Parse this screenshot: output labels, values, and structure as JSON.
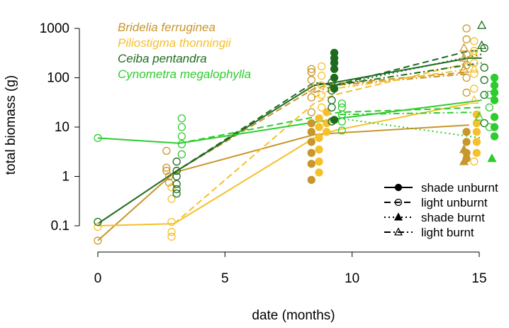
{
  "chart_data": {
    "type": "scatter",
    "title": "",
    "xlabel": "date (months)",
    "ylabel": "total biomass (g)",
    "xlim": [
      0,
      15.5
    ],
    "ylim": [
      0.06,
      1000
    ],
    "y_scale": "log",
    "x_ticks": [
      0,
      5,
      10,
      15
    ],
    "y_ticks": [
      0.1,
      1,
      10,
      100,
      1000
    ],
    "y_tick_labels": [
      "0.1",
      "1",
      "10",
      "100",
      "1000"
    ],
    "grid": false,
    "species_legend_placement": "top-left",
    "treatment_legend_placement": "bottom-right",
    "species": [
      {
        "name": "Bridelia ferruginea",
        "color": "#c8962a"
      },
      {
        "name": "Piliostigma thonningii",
        "color": "#f5c02a"
      },
      {
        "name": "Ceiba pentandra",
        "color": "#1e6b1e"
      },
      {
        "name": "Cynometra megalophylla",
        "color": "#2ecc2e"
      }
    ],
    "treatments": [
      {
        "name": "shade unburnt",
        "line": "solid",
        "marker": "filled-circle"
      },
      {
        "name": "light unburnt",
        "line": "long-dash",
        "marker": "open-circle"
      },
      {
        "name": "shade burnt",
        "line": "dotted",
        "marker": "filled-triangle"
      },
      {
        "name": "light burnt",
        "line": "dash-dot",
        "marker": "open-triangle"
      }
    ],
    "lines": [
      {
        "species": "Bridelia ferruginea",
        "treatment": "shade unburnt",
        "x": [
          0,
          3,
          8.5,
          9.3,
          14.6
        ],
        "y": [
          0.05,
          1.2,
          7,
          7.5,
          11
        ]
      },
      {
        "species": "Bridelia ferruginea",
        "treatment": "light unburnt",
        "x": [
          3,
          8.5,
          9.3,
          14.6
        ],
        "y": [
          1.2,
          60,
          75,
          130
        ]
      },
      {
        "species": "Bridelia ferruginea",
        "treatment": "light burnt",
        "x": [
          8.5,
          9.3,
          14.6
        ],
        "y": [
          50,
          70,
          120
        ]
      },
      {
        "species": "Piliostigma thonningii",
        "treatment": "shade unburnt",
        "x": [
          0,
          3,
          8.5,
          9.3,
          14.6
        ],
        "y": [
          0.1,
          0.11,
          6,
          8.5,
          30
        ]
      },
      {
        "species": "Piliostigma thonningii",
        "treatment": "light unburnt",
        "x": [
          3,
          8.5,
          9.3,
          14.6
        ],
        "y": [
          0.11,
          30,
          45,
          200
        ]
      },
      {
        "species": "Piliostigma thonningii",
        "treatment": "light burnt",
        "x": [
          8.5,
          9.3,
          14.6
        ],
        "y": [
          40,
          60,
          150
        ]
      },
      {
        "species": "Ceiba pentandra",
        "treatment": "shade unburnt",
        "x": [
          0,
          3,
          8.5,
          9.3,
          14.6,
          15.1
        ],
        "y": [
          0.11,
          1.2,
          70,
          80,
          250,
          250
        ]
      },
      {
        "species": "Ceiba pentandra",
        "treatment": "light unburnt",
        "x": [
          3,
          8.5,
          9.3,
          14.6,
          15.1
        ],
        "y": [
          1.2,
          80,
          70,
          350,
          350
        ]
      },
      {
        "species": "Ceiba pentandra",
        "treatment": "shade burnt",
        "x": [
          9.3,
          15.1
        ],
        "y": [
          70,
          300
        ]
      },
      {
        "species": "Ceiba pentandra",
        "treatment": "light burnt",
        "x": [
          9.3,
          15.1
        ],
        "y": [
          70,
          200
        ]
      },
      {
        "species": "Cynometra megalophylla",
        "treatment": "shade unburnt",
        "x": [
          0,
          3.2,
          9.5,
          15.1
        ],
        "y": [
          6,
          4.7,
          15,
          35
        ]
      },
      {
        "species": "Cynometra megalophylla",
        "treatment": "light unburnt",
        "x": [
          3.2,
          9.5,
          15.1
        ],
        "y": [
          4.7,
          20,
          25
        ]
      },
      {
        "species": "Cynometra megalophylla",
        "treatment": "shade burnt",
        "x": [
          9.5,
          15.1
        ],
        "y": [
          15,
          6
        ]
      },
      {
        "species": "Cynometra megalophylla",
        "treatment": "light burnt",
        "x": [
          9.5,
          15.1
        ],
        "y": [
          18,
          20
        ]
      }
    ],
    "points": [
      {
        "species": "Bridelia ferruginea",
        "treatment": "light unburnt",
        "x": 0,
        "values": [
          0.05
        ]
      },
      {
        "species": "Bridelia ferruginea",
        "treatment": "light unburnt",
        "x": 2.7,
        "values": [
          3.3,
          1.5,
          1.3
        ]
      },
      {
        "species": "Bridelia ferruginea",
        "treatment": "light unburnt",
        "x": 2.8,
        "values": [
          1.0,
          0.75
        ]
      },
      {
        "species": "Bridelia ferruginea",
        "treatment": "shade unburnt",
        "x": 8.4,
        "values": [
          0.85,
          1.8,
          3,
          5,
          8,
          12
        ]
      },
      {
        "species": "Bridelia ferruginea",
        "treatment": "light unburnt",
        "x": 8.4,
        "values": [
          20,
          40,
          60,
          90,
          130,
          150
        ]
      },
      {
        "species": "Bridelia ferruginea",
        "treatment": "shade unburnt",
        "x": 14.5,
        "values": [
          2.3,
          3,
          5,
          8
        ]
      },
      {
        "species": "Bridelia ferruginea",
        "treatment": "light unburnt",
        "x": 14.5,
        "values": [
          50,
          100,
          180,
          300,
          600,
          1000
        ]
      },
      {
        "species": "Bridelia ferruginea",
        "treatment": "light burnt",
        "x": 14.4,
        "values": [
          150,
          250,
          400
        ]
      },
      {
        "species": "Bridelia ferruginea",
        "treatment": "shade burnt",
        "x": 14.4,
        "values": [
          2,
          3.5
        ]
      },
      {
        "species": "Piliostigma thonningii",
        "treatment": "light unburnt",
        "x": 0,
        "values": [
          0.095
        ]
      },
      {
        "species": "Piliostigma thonningii",
        "treatment": "light unburnt",
        "x": 2.9,
        "values": [
          0.06,
          0.075,
          0.12,
          0.35,
          0.6
        ]
      },
      {
        "species": "Piliostigma thonningii",
        "treatment": "shade unburnt",
        "x": 8.7,
        "values": [
          1.2,
          2,
          3.5,
          6,
          10,
          15
        ]
      },
      {
        "species": "Piliostigma thonningii",
        "treatment": "light unburnt",
        "x": 8.8,
        "values": [
          25,
          45,
          70,
          110,
          170
        ]
      },
      {
        "species": "Piliostigma thonningii",
        "treatment": "shade unburnt",
        "x": 9.0,
        "values": [
          8,
          12,
          20
        ]
      },
      {
        "species": "Piliostigma thonningii",
        "treatment": "light unburnt",
        "x": 14.8,
        "values": [
          2,
          60,
          120,
          200,
          350,
          550
        ]
      },
      {
        "species": "Piliostigma thonningii",
        "treatment": "light burnt",
        "x": 14.8,
        "values": [
          35,
          150,
          300
        ]
      },
      {
        "species": "Piliostigma thonningii",
        "treatment": "shade unburnt",
        "x": 14.9,
        "values": [
          3,
          5,
          8,
          12,
          18
        ]
      },
      {
        "species": "Ceiba pentandra",
        "treatment": "light unburnt",
        "x": 0,
        "values": [
          0.12
        ]
      },
      {
        "species": "Ceiba pentandra",
        "treatment": "light unburnt",
        "x": 3.1,
        "values": [
          0.45,
          0.55,
          0.7,
          1.0,
          1.3,
          2.0
        ]
      },
      {
        "species": "Ceiba pentandra",
        "treatment": "shade unburnt",
        "x": 9.3,
        "values": [
          60,
          100,
          150,
          200,
          250,
          320,
          14
        ]
      },
      {
        "species": "Ceiba pentandra",
        "treatment": "light unburnt",
        "x": 9.2,
        "values": [
          13,
          25,
          35,
          55,
          80
        ]
      },
      {
        "species": "Ceiba pentandra",
        "treatment": "light unburnt",
        "x": 15.2,
        "values": [
          12,
          45,
          90,
          160,
          400
        ]
      },
      {
        "species": "Ceiba pentandra",
        "treatment": "light burnt",
        "x": 15.1,
        "values": [
          1150,
          450
        ]
      },
      {
        "species": "Cynometra megalophylla",
        "treatment": "light unburnt",
        "x": 0,
        "values": [
          6
        ]
      },
      {
        "species": "Cynometra megalophylla",
        "treatment": "light unburnt",
        "x": 3.3,
        "values": [
          2.8,
          4.5,
          6.5,
          10,
          15
        ]
      },
      {
        "species": "Cynometra megalophylla",
        "treatment": "light unburnt",
        "x": 9.6,
        "values": [
          8.5,
          13,
          18,
          25,
          30
        ]
      },
      {
        "species": "Cynometra megalophylla",
        "treatment": "shade unburnt",
        "x": 15.6,
        "values": [
          6.5,
          10,
          16,
          35,
          50,
          70,
          100
        ]
      },
      {
        "species": "Cynometra megalophylla",
        "treatment": "light unburnt",
        "x": 15.4,
        "values": [
          10,
          25,
          45
        ]
      },
      {
        "species": "Cynometra megalophylla",
        "treatment": "shade burnt",
        "x": 15.5,
        "values": [
          2.3
        ]
      },
      {
        "species": "Cynometra megalophylla",
        "treatment": "light burnt",
        "x": 15.0,
        "values": [
          16
        ]
      }
    ]
  }
}
